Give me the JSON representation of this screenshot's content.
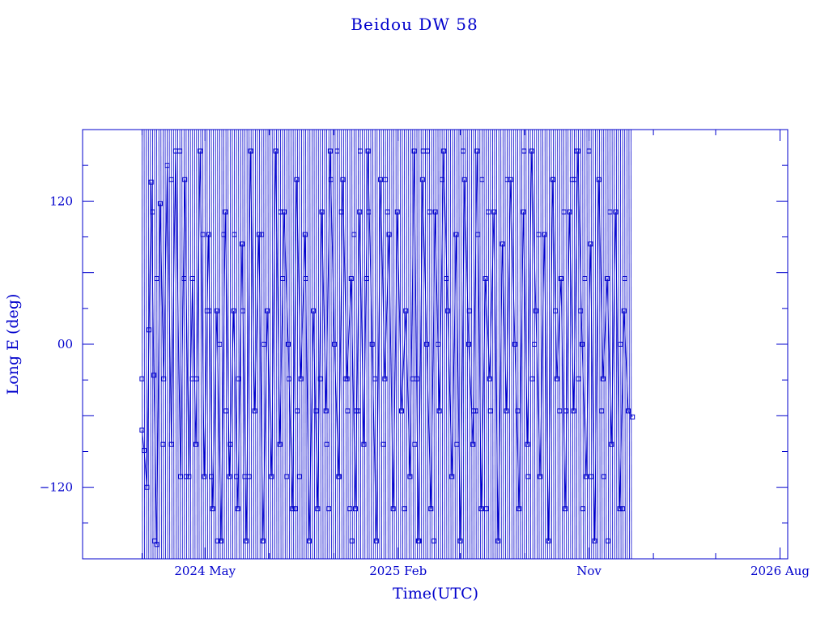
{
  "chart_data": {
    "type": "line",
    "title": "Beidou DW 58",
    "xlabel": "Time(UTC)",
    "ylabel": "Long E (deg)",
    "x_range": [
      "2023-11-08",
      "2026-08-12"
    ],
    "ylim": [
      -180,
      180
    ],
    "x_tick_labels": [
      {
        "date": "2024-05-01",
        "label": "2024 May"
      },
      {
        "date": "2025-02-01",
        "label": "2025 Feb"
      },
      {
        "date": "2025-11-01",
        "label": "Nov"
      },
      {
        "date": "2026-08-01",
        "label": "2026 Aug"
      }
    ],
    "y_tick_labels": [
      {
        "value": 120,
        "label": "120"
      },
      {
        "value": 0,
        "label": "00"
      },
      {
        "value": -120,
        "label": "−120"
      }
    ],
    "grid": false,
    "color": "#0000cc",
    "marker": "square",
    "data_start": "2024-02-01",
    "data_end": "2026-01-02",
    "series": [
      {
        "points": [
          [
            "2024-02-01",
            -72
          ],
          [
            "2024-02-04",
            -89
          ],
          [
            "2024-02-08",
            -120
          ],
          [
            "2024-02-11",
            12
          ],
          [
            "2024-02-14",
            136
          ],
          [
            "2024-02-18",
            -26
          ],
          [
            "2024-02-22",
            -168
          ],
          [
            "2024-02-27",
            118
          ],
          [
            "2024-03-03",
            -29
          ],
          [
            "2024-03-08",
            150
          ],
          [
            "2024-03-14",
            -84
          ],
          [
            "2024-03-20",
            162
          ],
          [
            "2024-03-27",
            -111
          ],
          [
            "2024-04-02",
            138
          ],
          [
            "2024-04-08",
            -111
          ],
          [
            "2024-04-13",
            55
          ],
          [
            "2024-04-18",
            -84
          ],
          [
            "2024-04-24",
            162
          ],
          [
            "2024-04-30",
            -111
          ],
          [
            "2024-05-06",
            92
          ],
          [
            "2024-05-12",
            -138
          ],
          [
            "2024-05-18",
            28
          ],
          [
            "2024-05-24",
            -165
          ],
          [
            "2024-05-30",
            111
          ],
          [
            "2024-06-05",
            -111
          ],
          [
            "2024-06-11",
            28
          ],
          [
            "2024-06-17",
            -138
          ],
          [
            "2024-06-23",
            84
          ],
          [
            "2024-06-29",
            -165
          ],
          [
            "2024-07-05",
            162
          ],
          [
            "2024-07-11",
            -56
          ],
          [
            "2024-07-17",
            92
          ],
          [
            "2024-07-23",
            -165
          ],
          [
            "2024-07-29",
            28
          ],
          [
            "2024-08-04",
            -111
          ],
          [
            "2024-08-10",
            162
          ],
          [
            "2024-08-16",
            -84
          ],
          [
            "2024-08-22",
            111
          ],
          [
            "2024-08-28",
            0
          ],
          [
            "2024-09-03",
            -138
          ],
          [
            "2024-09-09",
            138
          ],
          [
            "2024-09-15",
            -29
          ],
          [
            "2024-09-21",
            92
          ],
          [
            "2024-09-27",
            -165
          ],
          [
            "2024-10-03",
            28
          ],
          [
            "2024-10-09",
            -138
          ],
          [
            "2024-10-15",
            111
          ],
          [
            "2024-10-21",
            -56
          ],
          [
            "2024-10-27",
            162
          ],
          [
            "2024-11-02",
            0
          ],
          [
            "2024-11-08",
            -111
          ],
          [
            "2024-11-14",
            138
          ],
          [
            "2024-11-20",
            -29
          ],
          [
            "2024-11-26",
            55
          ],
          [
            "2024-12-02",
            -138
          ],
          [
            "2024-12-08",
            111
          ],
          [
            "2024-12-14",
            -84
          ],
          [
            "2024-12-20",
            162
          ],
          [
            "2024-12-26",
            0
          ],
          [
            "2025-01-01",
            -165
          ],
          [
            "2025-01-07",
            138
          ],
          [
            "2025-01-13",
            -29
          ],
          [
            "2025-01-19",
            92
          ],
          [
            "2025-01-25",
            -138
          ],
          [
            "2025-01-31",
            111
          ],
          [
            "2025-02-06",
            -56
          ],
          [
            "2025-02-12",
            28
          ],
          [
            "2025-02-18",
            -111
          ],
          [
            "2025-02-24",
            162
          ],
          [
            "2025-03-02",
            -165
          ],
          [
            "2025-03-08",
            138
          ],
          [
            "2025-03-14",
            0
          ],
          [
            "2025-03-20",
            -138
          ],
          [
            "2025-03-26",
            111
          ],
          [
            "2025-04-01",
            -56
          ],
          [
            "2025-04-07",
            162
          ],
          [
            "2025-04-13",
            28
          ],
          [
            "2025-04-19",
            -111
          ],
          [
            "2025-04-25",
            92
          ],
          [
            "2025-05-01",
            -165
          ],
          [
            "2025-05-07",
            138
          ],
          [
            "2025-05-13",
            0
          ],
          [
            "2025-05-19",
            -84
          ],
          [
            "2025-05-25",
            162
          ],
          [
            "2025-05-31",
            -138
          ],
          [
            "2025-06-06",
            55
          ],
          [
            "2025-06-12",
            -29
          ],
          [
            "2025-06-18",
            111
          ],
          [
            "2025-06-24",
            -165
          ],
          [
            "2025-06-30",
            84
          ],
          [
            "2025-07-06",
            -56
          ],
          [
            "2025-07-12",
            138
          ],
          [
            "2025-07-18",
            0
          ],
          [
            "2025-07-24",
            -138
          ],
          [
            "2025-07-30",
            111
          ],
          [
            "2025-08-05",
            -84
          ],
          [
            "2025-08-11",
            162
          ],
          [
            "2025-08-17",
            28
          ],
          [
            "2025-08-23",
            -111
          ],
          [
            "2025-08-29",
            92
          ],
          [
            "2025-09-04",
            -165
          ],
          [
            "2025-09-10",
            138
          ],
          [
            "2025-09-16",
            -29
          ],
          [
            "2025-09-22",
            55
          ],
          [
            "2025-09-28",
            -138
          ],
          [
            "2025-10-04",
            111
          ],
          [
            "2025-10-10",
            -56
          ],
          [
            "2025-10-16",
            162
          ],
          [
            "2025-10-22",
            0
          ],
          [
            "2025-10-28",
            -111
          ],
          [
            "2025-11-03",
            84
          ],
          [
            "2025-11-09",
            -165
          ],
          [
            "2025-11-15",
            138
          ],
          [
            "2025-11-21",
            -29
          ],
          [
            "2025-11-27",
            55
          ],
          [
            "2025-12-03",
            -84
          ],
          [
            "2025-12-09",
            111
          ],
          [
            "2025-12-15",
            -138
          ],
          [
            "2025-12-21",
            28
          ],
          [
            "2025-12-27",
            -56
          ],
          [
            "2026-01-02",
            -61
          ]
        ]
      }
    ]
  }
}
